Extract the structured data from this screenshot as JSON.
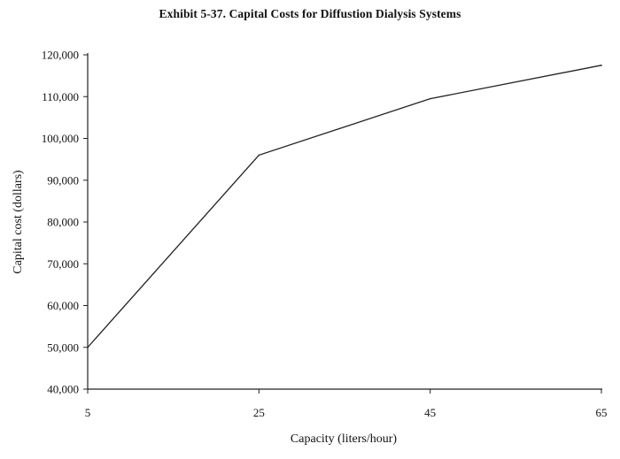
{
  "chart_data": {
    "type": "line",
    "title": "Exhibit 5-37. Capital Costs for Diffustion Dialysis Systems",
    "xlabel": "Capacity (liters/hour)",
    "ylabel": "Capital cost (dollars)",
    "x": [
      5,
      25,
      45,
      65
    ],
    "series": [
      {
        "values": [
          50000,
          96000,
          109500,
          117500
        ]
      }
    ],
    "xlim": [
      5,
      65
    ],
    "ylim": [
      40000,
      120000
    ],
    "x_ticks": [
      5,
      25,
      45,
      65
    ],
    "x_tick_labels": [
      "5",
      "25",
      "45",
      "65"
    ],
    "y_ticks": [
      40000,
      50000,
      60000,
      70000,
      80000,
      90000,
      100000,
      110000,
      120000
    ],
    "y_tick_labels": [
      "40,000",
      "50,000",
      "60,000",
      "70,000",
      "80,000",
      "90,000",
      "100,000",
      "110,000",
      "120,000"
    ],
    "grid": false,
    "legend": "none",
    "line_color": "#222222"
  }
}
